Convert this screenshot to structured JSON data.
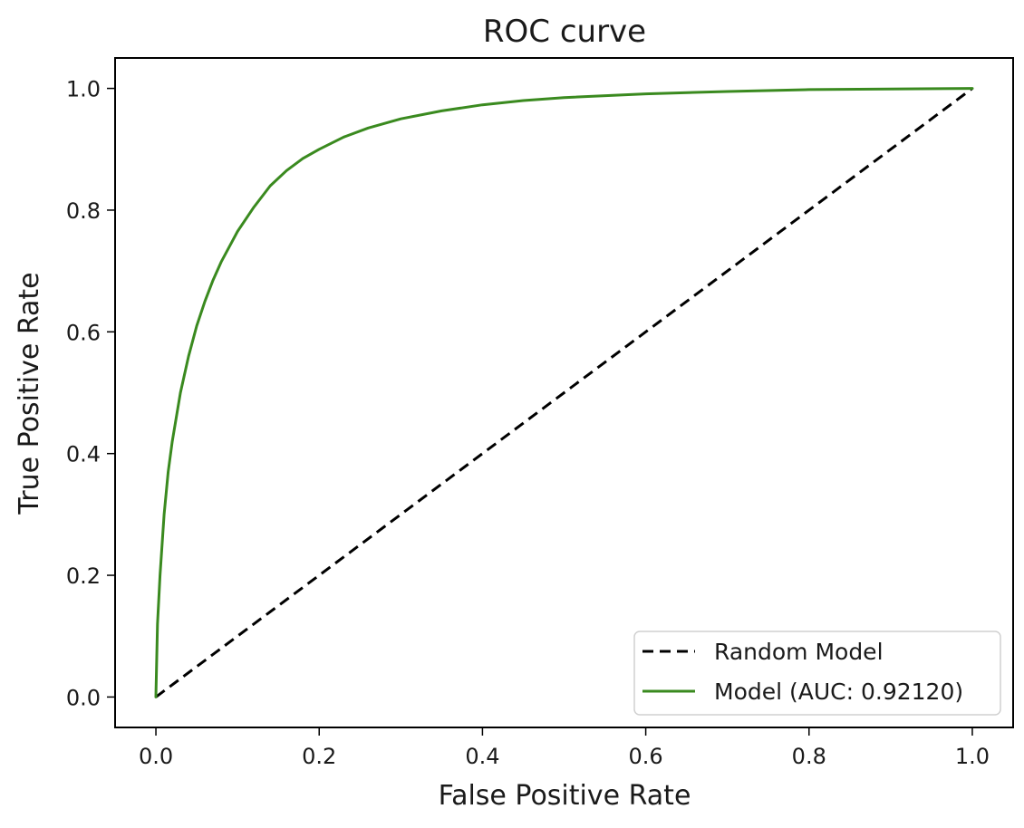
{
  "chart_data": {
    "type": "line",
    "title": "ROC curve",
    "xlabel": "False Positive Rate",
    "ylabel": "True Positive Rate",
    "xlim": [
      -0.05,
      1.05
    ],
    "ylim": [
      -0.05,
      1.05
    ],
    "xticks": [
      0.0,
      0.2,
      0.4,
      0.6,
      0.8,
      1.0
    ],
    "yticks": [
      0.0,
      0.2,
      0.4,
      0.6,
      0.8,
      1.0
    ],
    "xtick_labels": [
      "0.0",
      "0.2",
      "0.4",
      "0.6",
      "0.8",
      "1.0"
    ],
    "ytick_labels": [
      "0.0",
      "0.2",
      "0.4",
      "0.6",
      "0.8",
      "1.0"
    ],
    "grid": false,
    "legend_position": "bottom-right",
    "series": [
      {
        "name": "Random Model",
        "color": "#000000",
        "style": "dashed",
        "x": [
          0.0,
          1.0
        ],
        "y": [
          0.0,
          1.0
        ]
      },
      {
        "name": "Model (AUC: 0.92120)",
        "color": "#3a8a1f",
        "style": "solid",
        "x": [
          0.0,
          0.002,
          0.005,
          0.01,
          0.015,
          0.02,
          0.03,
          0.04,
          0.05,
          0.06,
          0.07,
          0.08,
          0.1,
          0.12,
          0.14,
          0.16,
          0.18,
          0.2,
          0.23,
          0.26,
          0.3,
          0.35,
          0.4,
          0.45,
          0.5,
          0.6,
          0.7,
          0.8,
          0.9,
          1.0
        ],
        "y": [
          0.0,
          0.12,
          0.2,
          0.3,
          0.37,
          0.42,
          0.5,
          0.56,
          0.61,
          0.65,
          0.685,
          0.715,
          0.765,
          0.805,
          0.84,
          0.865,
          0.885,
          0.9,
          0.92,
          0.935,
          0.95,
          0.963,
          0.973,
          0.98,
          0.985,
          0.991,
          0.995,
          0.998,
          0.999,
          1.0
        ]
      }
    ]
  }
}
